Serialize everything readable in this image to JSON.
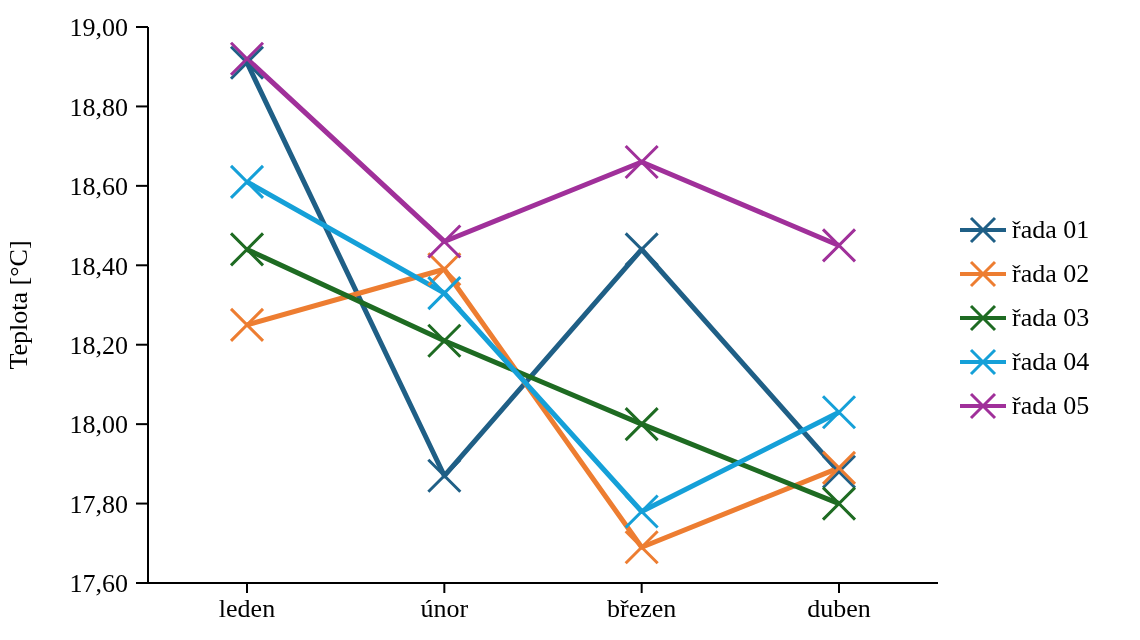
{
  "chart_data": {
    "type": "line",
    "ylabel": "Teplota [°C]",
    "categories": [
      "leden",
      "únor",
      "březen",
      "duben"
    ],
    "series": [
      {
        "name": "řada 01",
        "color": "#1f5f86",
        "values": [
          18.91,
          17.87,
          18.44,
          17.88
        ]
      },
      {
        "name": "řada 02",
        "color": "#ed7d31",
        "values": [
          18.25,
          18.39,
          17.69,
          17.89
        ]
      },
      {
        "name": "řada 03",
        "color": "#1e6b22",
        "values": [
          18.44,
          18.21,
          18.0,
          17.8
        ]
      },
      {
        "name": "řada 04",
        "color": "#15a0d8",
        "values": [
          18.61,
          18.33,
          17.78,
          18.03
        ]
      },
      {
        "name": "řada 05",
        "color": "#a0309a",
        "values": [
          18.92,
          18.46,
          18.66,
          18.45
        ]
      }
    ],
    "ylim": [
      17.6,
      19.0
    ],
    "yticks": [
      {
        "value": 17.6,
        "label": "17,60"
      },
      {
        "value": 17.8,
        "label": "17,80"
      },
      {
        "value": 18.0,
        "label": "18,00"
      },
      {
        "value": 18.2,
        "label": "18,20"
      },
      {
        "value": 18.4,
        "label": "18,40"
      },
      {
        "value": 18.6,
        "label": "18,60"
      },
      {
        "value": 18.8,
        "label": "18,80"
      },
      {
        "value": 19.0,
        "label": "19,00"
      }
    ],
    "grid": false,
    "legend": "right",
    "marker": "cross",
    "line_style": "solid"
  }
}
